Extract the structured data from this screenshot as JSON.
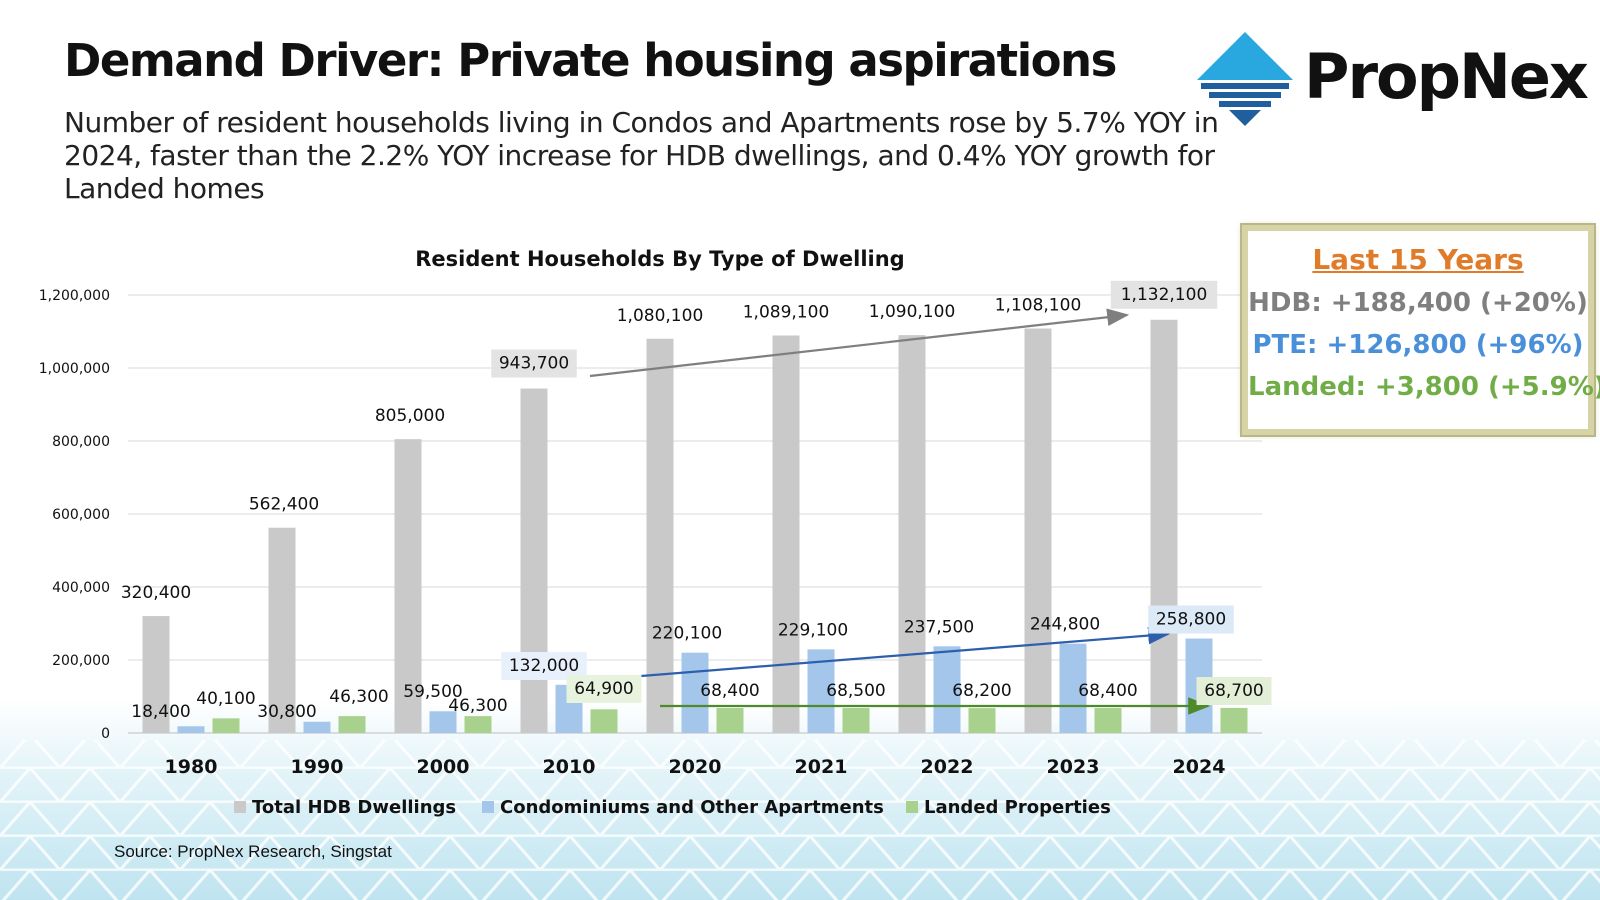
{
  "page": {
    "headline": "Demand Driver: Private housing aspirations",
    "subtitle": "Number of resident households living in Condos and Apartments rose by 5.7% YOY in 2024, faster than the 2.2% YOY increase for HDB dwellings, and 0.4% YOY growth for Landed homes",
    "brand": "PropNex",
    "source": "Source: PropNex Research, Singstat"
  },
  "summary": {
    "heading": "Last 15 Years",
    "hdb": "HDB: +188,400 (+20%)",
    "pte": "PTE: +126,800 (+96%)",
    "landed": "Landed: +3,800 (+5.9%)",
    "colors": {
      "heading": "#e07b2a",
      "hdb": "#7f7f7f",
      "pte": "#4a90d9",
      "landed": "#70ad47"
    }
  },
  "chart_data": {
    "type": "bar",
    "title": "Resident Households By Type of Dwelling",
    "categories": [
      "1980",
      "1990",
      "2000",
      "2010",
      "2020",
      "2021",
      "2022",
      "2023",
      "2024"
    ],
    "ylim": [
      0,
      1200000
    ],
    "yticks": [
      0,
      200000,
      400000,
      600000,
      800000,
      1000000,
      1200000
    ],
    "ytick_labels": [
      "0",
      "200,000",
      "400,000",
      "600,000",
      "800,000",
      "1,000,000",
      "1,200,000"
    ],
    "grid": true,
    "legend_position": "bottom",
    "series": [
      {
        "name": "Total HDB Dwellings",
        "color": "#c9c9c9",
        "values": [
          320400,
          562400,
          805000,
          943700,
          1080100,
          1089100,
          1090100,
          1108100,
          1132100
        ],
        "labels": [
          "320,400",
          "562,400",
          "805,000",
          "943,700",
          "1,080,100",
          "1,089,100",
          "1,090,100",
          "1,108,100",
          "1,132,100"
        ]
      },
      {
        "name": "Condominiums and Other Apartments",
        "color": "#a4c6ea",
        "values": [
          18400,
          30800,
          59500,
          132000,
          220100,
          229100,
          237500,
          244800,
          258800
        ],
        "labels": [
          "18,400",
          "30,800",
          "59,500",
          "132,000",
          "220,100",
          "229,100",
          "237,500",
          "244,800",
          "258,800"
        ]
      },
      {
        "name": "Landed Properties",
        "color": "#a9d18e",
        "values": [
          40100,
          46300,
          46300,
          64900,
          68400,
          68500,
          68200,
          68400,
          68700
        ],
        "labels": [
          "40,100",
          "46,300",
          "46,300",
          "64,900",
          "68,400",
          "68,500",
          "68,200",
          "68,400",
          "68,700"
        ]
      }
    ],
    "trend_arrows": [
      {
        "series": 0,
        "from": "2010",
        "to": "2024",
        "color": "#7f7f7f"
      },
      {
        "series": 1,
        "from": "2010",
        "to": "2024",
        "color": "#2e5fad"
      },
      {
        "series": 2,
        "from": "2010",
        "to": "2024",
        "color": "#4e8a2a"
      }
    ]
  }
}
